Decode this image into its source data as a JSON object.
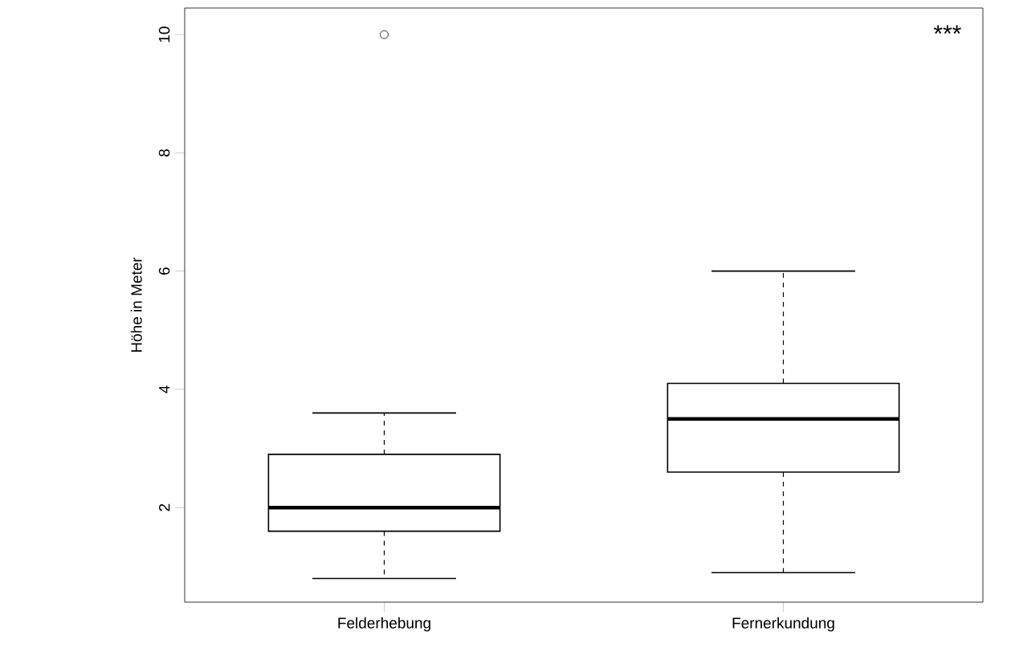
{
  "chart_data": {
    "type": "box",
    "ylabel": "Höhe in Meter",
    "categories": [
      "Felderhebung",
      "Fernerkundung"
    ],
    "boxes": [
      {
        "low": 0.8,
        "q1": 1.6,
        "median": 2.0,
        "q3": 2.9,
        "high": 3.6,
        "outliers": [
          10
        ]
      },
      {
        "low": 0.9,
        "q1": 2.6,
        "median": 3.5,
        "q3": 4.1,
        "high": 6.0
      }
    ],
    "ylim": [
      0.4,
      10.45
    ],
    "yticks": [
      2,
      4,
      6,
      8,
      10
    ],
    "annotations": [
      "***"
    ]
  }
}
